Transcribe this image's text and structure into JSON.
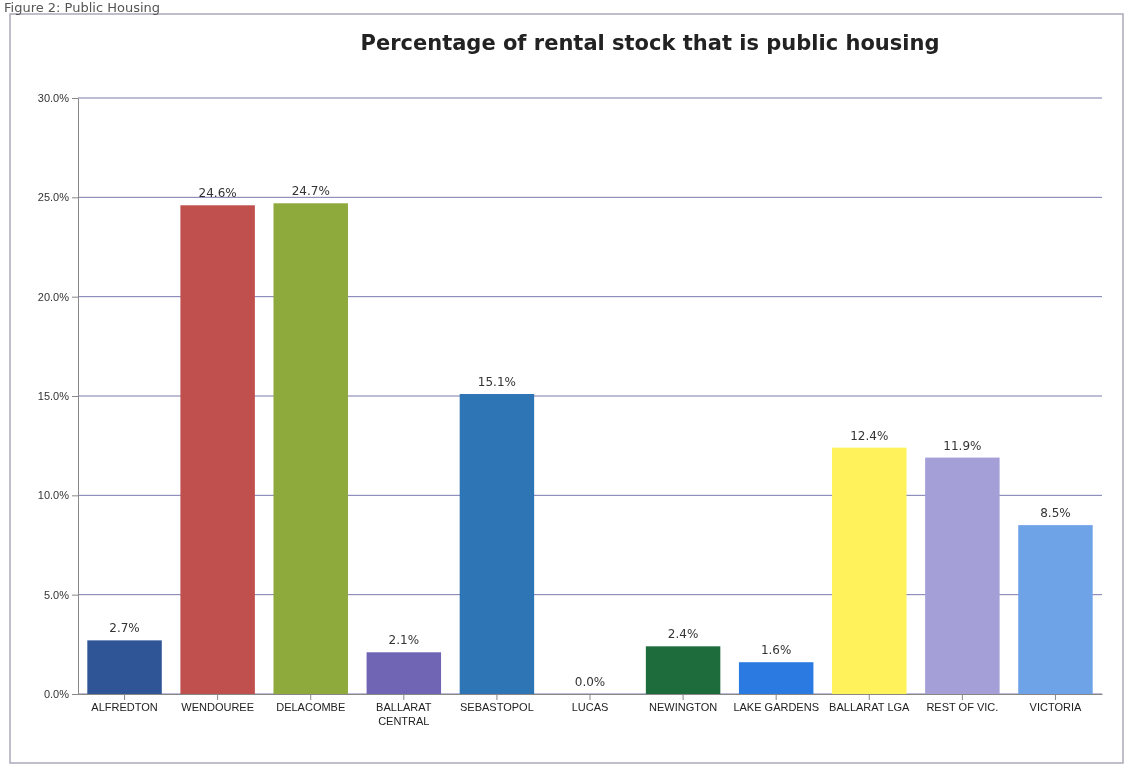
{
  "chart_data": {
    "type": "bar",
    "title": "Percentage of rental stock that is public housing",
    "annotations": [
      "Figure 2: Public Housing"
    ],
    "categories": [
      "ALFREDTON",
      "WENDOUREE",
      "DELACOMBE",
      "BALLARAT CENTRAL",
      "SEBASTOPOL",
      "LUCAS",
      "NEWINGTON",
      "LAKE GARDENS",
      "BALLARAT LGA",
      "REST OF VIC.",
      "VICTORIA"
    ],
    "values": [
      2.7,
      24.6,
      24.7,
      2.1,
      15.1,
      0.0,
      2.4,
      1.6,
      12.4,
      11.9,
      8.5
    ],
    "colors": [
      "#2f5597",
      "#c0504d",
      "#8faa3c",
      "#7065b4",
      "#2e75b6",
      "#2e75b6",
      "#1e6b3c",
      "#2a7ae2",
      "#fff25a",
      "#a59fd8",
      "#6fa3e8"
    ],
    "ylim": [
      0,
      30
    ],
    "yticks": [
      {
        "value": 0,
        "label": "0.0%"
      },
      {
        "value": 5,
        "label": "5.0%"
      },
      {
        "value": 10,
        "label": "10.0%"
      },
      {
        "value": 15,
        "label": "15.0%"
      },
      {
        "value": 20,
        "label": "20.0%"
      },
      {
        "value": 25,
        "label": "25.0%"
      },
      {
        "value": 30,
        "label": "30.0%"
      }
    ],
    "value_labels": [
      "2.7%",
      "24.6%",
      "24.7%",
      "2.1%",
      "15.1%",
      "0.0%",
      "2.4%",
      "1.6%",
      "12.4%",
      "11.9%",
      "8.5%"
    ],
    "grid": true
  }
}
